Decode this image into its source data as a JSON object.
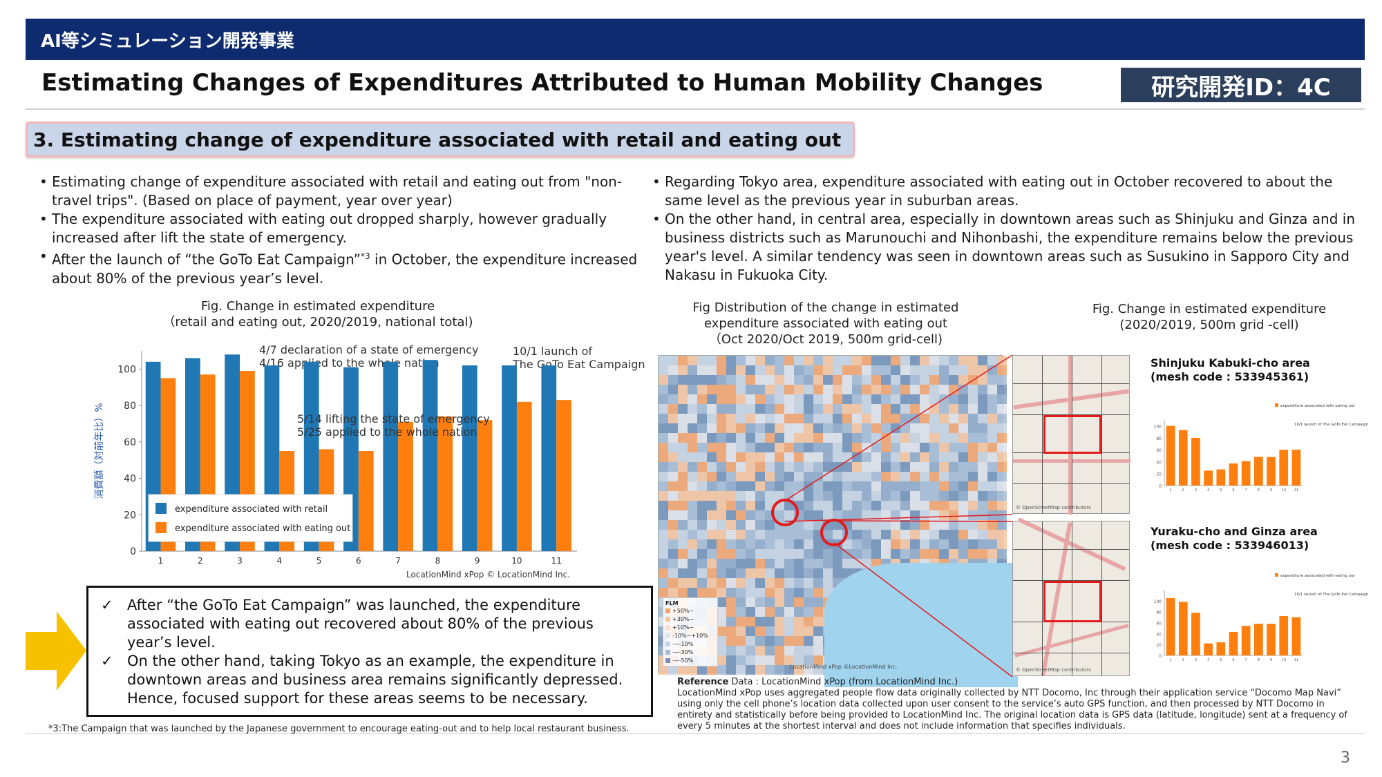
{
  "header": {
    "bar_title": "AI等シミュレーション開発事業",
    "main_title": "Estimating Changes of Expenditures Attributed to Human Mobility Changes",
    "id_badge": "研究開発ID：4C"
  },
  "section": {
    "heading": "3. Estimating change of expenditure associated with retail and eating out"
  },
  "left_bullets": [
    "Estimating change of expenditure associated with retail and eating out from \"non-travel trips\". (Based on place of payment, year over year)",
    "The expenditure associated with eating out dropped sharply, however gradually increased after lift the state of emergency.",
    "After the launch of “the GoTo Eat Campaign”",
    "*3",
    " in October, the expenditure increased about 80% of the previous year’s level."
  ],
  "right_bullets": [
    "Regarding Tokyo area, expenditure associated with eating out in October recovered to about the same level as the previous year in suburban areas.",
    "On the other hand, in central area, especially in downtown areas such as Shinjuku and Ginza and in business districts such as Marunouchi and Nihonbashi, the expenditure  remains below the previous year's level. A similar tendency was seen in downtown areas such as Susukino in Sapporo City and Nakasu in Fukuoka City."
  ],
  "chart_caption": {
    "line1": "Fig.   Change in estimated expenditure",
    "line2": "（retail and eating out, 2020/2019, national total)"
  },
  "chart_annotations": {
    "a1_line1": "4/7  declaration of a state of emergency",
    "a1_line2": "4/16 applied to the whole nation",
    "a2_line1": "10/1 launch of",
    "a2_line2": "The GoTo Eat Campaign",
    "a3_line1": "5/14  lifting the state of emergency",
    "a3_line2": "5/25  applied to the whole nation",
    "credit": "LocationMind xPop © LocationMind Inc."
  },
  "chart_data": {
    "type": "bar",
    "categories": [
      "1",
      "2",
      "3",
      "4",
      "5",
      "6",
      "7",
      "8",
      "9",
      "10",
      "11"
    ],
    "ylabel": "消費額（対前年比）%",
    "ylim": [
      0,
      110
    ],
    "yticks": [
      0,
      20,
      40,
      60,
      80,
      100
    ],
    "legend_position": "bottom-left",
    "series": [
      {
        "name": "expenditure associated with retail",
        "color": "#1f77b4",
        "values": [
          104,
          106,
          108,
          102,
          104,
          101,
          104,
          105,
          102,
          102,
          102
        ]
      },
      {
        "name": "expenditure associated with eating out",
        "color": "#ff7f0e",
        "values": [
          95,
          97,
          99,
          55,
          56,
          55,
          71,
          74,
          72,
          82,
          83
        ]
      }
    ]
  },
  "conclusion": {
    "check_symbol": "✓",
    "item1": "After “the GoTo Eat Campaign” was launched, the expenditure associated with eating out recovered about 80% of the previous year’s level.",
    "item2": "On the other hand, taking Tokyo as an example, the expenditure in downtown areas and business area remains significantly depressed. Hence, focused support for these areas seems to be necessary."
  },
  "footnote": "*3:The Campaign that was launched by the Japanese government to encourage eating-out and to help local restaurant business.",
  "map_caption": {
    "line1": "Fig Distribution of the change in estimated",
    "line2": "expenditure associated with eating out",
    "line3": "（Oct 2020/Oct 2019, 500m grid-cell)"
  },
  "map": {
    "legend_title": "FLM",
    "legend_items": [
      "+50%~",
      "+30%~",
      "+10%~",
      "-10%~+10%",
      "-~-10%",
      "-~-30%",
      "-~-50%"
    ],
    "credit": "LocationMind xPop ©LocationMind Inc.",
    "sea_color": "#9fd3ee"
  },
  "right_caption": {
    "line1": "Fig.   Change in estimated expenditure",
    "line2": "(2020/2019,  500m grid -cell)"
  },
  "area1": {
    "title": "Shinjuku Kabuki-cho area",
    "mesh": " (mesh code : 533945361)",
    "legend": "expenditure associated with eating out",
    "note": "10/1 launch of The GoTo Eat Campaign",
    "map_credit": "© OpenStreetMap contributors"
  },
  "area2": {
    "title": "Yuraku-cho and Ginza area",
    "mesh": "(mesh code : 533946013)",
    "legend": "expenditure associated with eating out",
    "note": "10/1 launch of The GoTo Eat Campaign",
    "map_credit": "© OpenStreetMap contributors"
  },
  "area_chart_data": [
    {
      "type": "bar",
      "categories": [
        "1",
        "2",
        "3",
        "4",
        "5",
        "6",
        "7",
        "8",
        "9",
        "10",
        "11"
      ],
      "ylim": [
        0,
        110
      ],
      "yticks": [
        0,
        20,
        40,
        60,
        80,
        100
      ],
      "values": [
        100,
        93,
        80,
        25,
        27,
        37,
        41,
        48,
        48,
        60,
        60
      ]
    },
    {
      "type": "bar",
      "categories": [
        "1",
        "2",
        "3",
        "4",
        "5",
        "6",
        "7",
        "8",
        "9",
        "10",
        "11"
      ],
      "ylim": [
        0,
        120
      ],
      "yticks": [
        0,
        20,
        40,
        60,
        80,
        100
      ],
      "values": [
        105,
        98,
        78,
        22,
        24,
        43,
        54,
        58,
        58,
        72,
        70
      ]
    }
  ],
  "reference": {
    "label": "Reference",
    "line1": "   Data : LocationMind xPop (from LocationMind Inc.)",
    "body": "LocationMind xPop uses aggregated people flow data originally collected by NTT Docomo, Inc through their application service “Docomo Map Navi” using only the cell phone’s location data collected upon user consent to the service’s auto GPS function, and then processed by NTT Docomo in entirety and statistically before being provided to LocationMind Inc. The original location data is GPS data (latitude, longitude) sent at a frequency of every 5 minutes at the shortest interval and does not include information that specifies individuals."
  },
  "page_number": "3"
}
